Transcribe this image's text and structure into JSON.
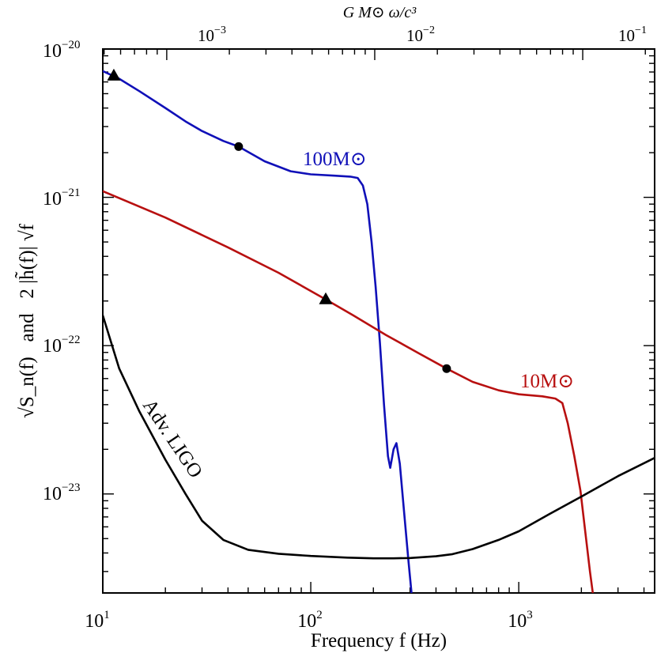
{
  "chart_data": {
    "type": "line",
    "xlabel": "Frequency f (Hz)",
    "ylabel": "√S_n(f)   and   2 |h̃(f)| √f",
    "top_xlabel": "G M⊙ ω/c³",
    "x_scale": "log",
    "y_scale": "log",
    "xlim": [
      10,
      4500
    ],
    "ylim": [
      2.15e-24,
      1e-20
    ],
    "x_ticks": [
      {
        "value": 10,
        "label": "10",
        "exp": "1"
      },
      {
        "value": 100,
        "label": "10",
        "exp": "2"
      },
      {
        "value": 1000,
        "label": "10",
        "exp": "3"
      }
    ],
    "y_ticks": [
      {
        "value": 1e-20,
        "label": "10",
        "exp": "−20"
      },
      {
        "value": 1e-21,
        "label": "10",
        "exp": "−21"
      },
      {
        "value": 1e-22,
        "label": "10",
        "exp": "−22"
      },
      {
        "value": 1e-23,
        "label": "10",
        "exp": "−23"
      }
    ],
    "top_ticks": [
      {
        "label": "10",
        "exp": "−3",
        "freq": 20.3
      },
      {
        "label": "10",
        "exp": "−2",
        "freq": 203
      },
      {
        "label": "10",
        "exp": "−1",
        "freq": 2030
      }
    ],
    "series": [
      {
        "name": "100M⊙",
        "color": "#1010b8",
        "points": [
          [
            10,
            7.1e-21
          ],
          [
            12,
            6.3e-21
          ],
          [
            15,
            5.2e-21
          ],
          [
            20,
            4e-21
          ],
          [
            25,
            3.25e-21
          ],
          [
            30,
            2.8e-21
          ],
          [
            38,
            2.4e-21
          ],
          [
            45,
            2.2e-21
          ],
          [
            60,
            1.75e-21
          ],
          [
            80,
            1.5e-21
          ],
          [
            100,
            1.43e-21
          ],
          [
            130,
            1.4e-21
          ],
          [
            155,
            1.38e-21
          ],
          [
            168,
            1.35e-21
          ],
          [
            178,
            1.2e-21
          ],
          [
            187,
            9e-22
          ],
          [
            196,
            5e-22
          ],
          [
            205,
            2.5e-22
          ],
          [
            215,
            1.05e-22
          ],
          [
            225,
            4e-23
          ],
          [
            235,
            1.8e-23
          ],
          [
            241,
            1.5e-23
          ],
          [
            250,
            2e-23
          ],
          [
            258,
            2.2e-23
          ],
          [
            268,
            1.6e-23
          ],
          [
            280,
            8e-24
          ],
          [
            295,
            3.5e-24
          ],
          [
            305,
            2.15e-24
          ]
        ],
        "markers": [
          {
            "shape": "triangle",
            "x": 11.3,
            "y": 6.6e-21
          },
          {
            "shape": "circle",
            "x": 45,
            "y": 2.2e-21
          }
        ]
      },
      {
        "name": "10M⊙",
        "color": "#b81010",
        "points": [
          [
            10,
            1.1e-21
          ],
          [
            20,
            7.3e-22
          ],
          [
            40,
            4.6e-22
          ],
          [
            70,
            3.1e-22
          ],
          [
            118,
            2.05e-22
          ],
          [
            160,
            1.6e-22
          ],
          [
            230,
            1.18e-22
          ],
          [
            330,
            8.9e-23
          ],
          [
            450,
            7e-23
          ],
          [
            600,
            5.7e-23
          ],
          [
            800,
            5e-23
          ],
          [
            1000,
            4.7e-23
          ],
          [
            1300,
            4.55e-23
          ],
          [
            1500,
            4.4e-23
          ],
          [
            1620,
            4.1e-23
          ],
          [
            1720,
            3e-23
          ],
          [
            1850,
            1.8e-23
          ],
          [
            1980,
            1.05e-23
          ],
          [
            2100,
            5.2e-24
          ],
          [
            2200,
            3e-24
          ],
          [
            2270,
            2.15e-24
          ]
        ],
        "markers": [
          {
            "shape": "triangle",
            "x": 118,
            "y": 2.05e-22
          },
          {
            "shape": "circle",
            "x": 450,
            "y": 7e-23
          }
        ]
      },
      {
        "name": "Adv. LIGO",
        "color": "#000000",
        "points": [
          [
            10,
            1.6e-22
          ],
          [
            12,
            7e-23
          ],
          [
            15,
            3.6e-23
          ],
          [
            20,
            1.7e-23
          ],
          [
            25,
            1e-23
          ],
          [
            30,
            6.6e-24
          ],
          [
            38,
            4.9e-24
          ],
          [
            50,
            4.2e-24
          ],
          [
            70,
            3.95e-24
          ],
          [
            100,
            3.82e-24
          ],
          [
            150,
            3.72e-24
          ],
          [
            200,
            3.68e-24
          ],
          [
            250,
            3.68e-24
          ],
          [
            300,
            3.7e-24
          ],
          [
            400,
            3.8e-24
          ],
          [
            480,
            3.93e-24
          ],
          [
            600,
            4.25e-24
          ],
          [
            800,
            4.9e-24
          ],
          [
            1000,
            5.6e-24
          ],
          [
            1400,
            7.3e-24
          ],
          [
            2000,
            9.6e-24
          ],
          [
            3000,
            1.32e-23
          ],
          [
            4500,
            1.75e-23
          ]
        ]
      }
    ],
    "annotations": [
      {
        "text": "100M⊙",
        "for": "100M⊙"
      },
      {
        "text": "10M⊙",
        "for": "10M⊙"
      },
      {
        "text": "Adv. LIGO",
        "for": "Adv. LIGO"
      }
    ]
  }
}
